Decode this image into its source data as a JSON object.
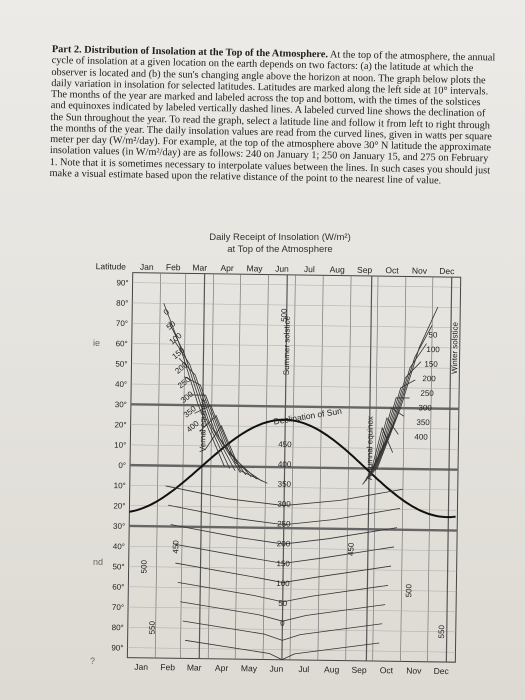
{
  "document": {
    "part_heading": "Part 2. Distribution of Insolation at the Top of the Atmosphere.",
    "paragraph": "At the top of the atmosphere, the annual cycle of insolation at a given location on the earth depends on two factors: (a) the latitude at which the observer is located and (b) the sun's changing angle above the horizon at noon. The graph below plots the daily variation in insolation for selected latitudes. Latitudes are marked along the left side at 10° intervals. The months of the year are marked and labeled across the top and bottom, with the times of the solstices and equinoxes indicated by labeled vertically dashed lines. A labeled curved line shows the declination of the Sun throughout the year. To read the graph, select a latitude line and follow it from left to right through the months of the year. The daily insolation values are read from the curved lines, given in watts per square meter per day (W/m²/day). For example, at the top of the atmosphere above 30° N latitude the approximate insolation values (in W/m²/day) are as follows: 240 on January 1; 250 on January 15, and 275 on February 1. Note that it is sometimes necessary to interpolate values between the lines. In such cases you should just make a visual estimate based upon the relative distance of the point to the nearest line of value."
  },
  "chart": {
    "title": "Daily Receipt of Insolation (W/m²)",
    "subtitle": "at Top of the Atmosphere",
    "latitude_label": "Latitude",
    "months": [
      "Jan",
      "Feb",
      "Mar",
      "Apr",
      "May",
      "Jun",
      "Jul",
      "Aug",
      "Sep",
      "Oct",
      "Nov",
      "Dec"
    ],
    "latitudes": [
      "90°",
      "80°",
      "70°",
      "60°",
      "50°",
      "40°",
      "30°",
      "20°",
      "10°",
      "0°",
      "10°",
      "20°",
      "30°",
      "40°",
      "50°",
      "60°",
      "70°",
      "80°",
      "90°"
    ],
    "event_labels": {
      "vernal": "Vernal equinox",
      "summer": "Summer solstice",
      "autumnal": "Autumnal equinox",
      "winter": "Winter solstice"
    },
    "declination_label": "Declination of Sun",
    "contour_labels_left": [
      "0",
      "50",
      "100",
      "150",
      "200",
      "250",
      "300",
      "350",
      "400"
    ],
    "contour_labels_right": [
      "50",
      "100",
      "150",
      "200",
      "250",
      "300",
      "350",
      "400"
    ],
    "contour_labels_center": [
      "450",
      "400",
      "350",
      "300",
      "250",
      "200",
      "150",
      "100",
      "50",
      "0"
    ],
    "contour_labels_misc": [
      "500",
      "500",
      "450",
      "450",
      "500",
      "550",
      "550"
    ],
    "margin_left_marks": [
      "ie",
      "nd",
      "?"
    ]
  },
  "chart_data": {
    "type": "heatmap",
    "title": "Daily Receipt of Insolation (W/m²)",
    "subtitle": "at Top of the Atmosphere",
    "xlabel": "",
    "ylabel": "Latitude",
    "x_categories": [
      "Jan",
      "Feb",
      "Mar",
      "Apr",
      "May",
      "Jun",
      "Jul",
      "Aug",
      "Sep",
      "Oct",
      "Nov",
      "Dec"
    ],
    "y_categories": [
      "90°",
      "80°",
      "70°",
      "60°",
      "50°",
      "40°",
      "30°",
      "20°",
      "10°",
      "0°",
      "10°",
      "20°",
      "30°",
      "40°",
      "50°",
      "60°",
      "70°",
      "80°",
      "90°"
    ],
    "contour_levels": [
      0,
      50,
      100,
      150,
      200,
      250,
      300,
      350,
      400,
      450,
      500,
      550
    ]
  }
}
